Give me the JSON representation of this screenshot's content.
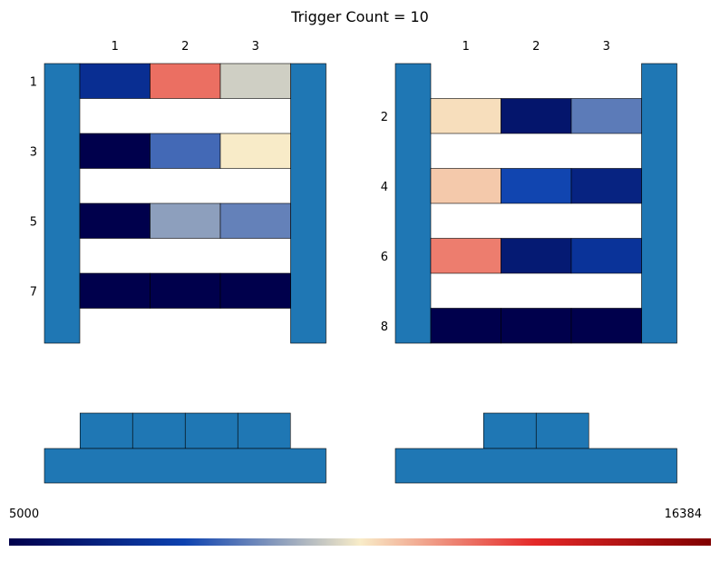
{
  "title": "Trigger Count = 10",
  "chart_data": {
    "type": "heatmap",
    "title": "Trigger Count = 10",
    "colormap": "blue-white-red diverging",
    "colorbar": {
      "min": 5000,
      "max": 16384,
      "min_label": "5000",
      "max_label": "16384"
    },
    "frame_color": "#1f77b4",
    "panels": [
      {
        "column_labels": [
          "1",
          "2",
          "3"
        ],
        "filled_rows": [
          {
            "row": "1",
            "values": [
              7000,
              12500,
              10200
            ]
          },
          {
            "row": "3",
            "values": [
              5000,
              8500,
              10700
            ]
          },
          {
            "row": "5",
            "values": [
              5000,
              9400,
              8900
            ]
          },
          {
            "row": "7",
            "values": [
              5000,
              5000,
              5000
            ]
          }
        ],
        "base_segments": 4
      },
      {
        "column_labels": [
          "1",
          "2",
          "3"
        ],
        "filled_rows": [
          {
            "row": "2",
            "values": [
              10900,
              5900,
              8800
            ]
          },
          {
            "row": "4",
            "values": [
              11200,
              7900,
              6500
            ]
          },
          {
            "row": "6",
            "values": [
              12300,
              6100,
              7200
            ]
          },
          {
            "row": "8",
            "values": [
              5000,
              5000,
              5000
            ]
          }
        ],
        "base_segments": 2
      }
    ]
  }
}
